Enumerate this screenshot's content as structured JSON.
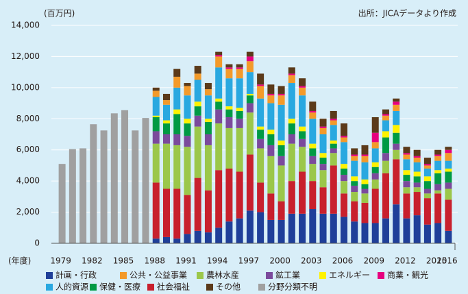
{
  "chart_data": {
    "type": "stacked_bar",
    "unit_label": "(百万円)",
    "source": "出所：JICAデータより作成",
    "x_label": "(年度)",
    "categories": [
      "1979",
      null,
      null,
      "1982",
      null,
      null,
      "1985",
      null,
      null,
      "1988",
      null,
      null,
      "1991",
      null,
      null,
      "1994",
      null,
      null,
      "1997",
      null,
      null,
      "2000",
      null,
      null,
      "2003",
      null,
      null,
      "2006",
      null,
      null,
      "2009",
      null,
      null,
      "2012",
      null,
      null,
      "2015",
      "2016"
    ],
    "ylim": [
      0,
      14000
    ],
    "yticks": [
      0,
      {
        "value": 2000,
        "label": "2,000"
      },
      {
        "value": 4000,
        "label": "4,000"
      },
      {
        "value": 6000,
        "label": "6,000"
      },
      {
        "value": 8000,
        "label": "8,000"
      },
      {
        "value": 10000,
        "label": "10,000"
      },
      {
        "value": 12000,
        "label": "12,000"
      },
      {
        "value": 14000,
        "label": "14,000"
      }
    ],
    "grid": true,
    "series": [
      {
        "name": "計画・行政",
        "color": "#1f3f99",
        "values": [
          null,
          null,
          null,
          null,
          null,
          null,
          null,
          null,
          null,
          300,
          400,
          300,
          600,
          800,
          700,
          1000,
          1400,
          1600,
          2100,
          2000,
          1500,
          1500,
          1900,
          1900,
          2200,
          1900,
          1900,
          1700,
          1400,
          1300,
          1300,
          1600,
          2500,
          1600,
          1800,
          1200,
          1300,
          800
        ]
      },
      {
        "name": "公共・公益事業",
        "color": "#f39a2a",
        "values": [
          null,
          null,
          null,
          null,
          null,
          null,
          null,
          null,
          null,
          400,
          300,
          700,
          600,
          400,
          400,
          700,
          600,
          600,
          700,
          800,
          500,
          600,
          500,
          500,
          400,
          400,
          300,
          300,
          300,
          400,
          400,
          300,
          400,
          300,
          300,
          200,
          300,
          500
        ]
      },
      {
        "name": "農林水産",
        "color": "#9bc74a",
        "values": [
          null,
          null,
          null,
          null,
          null,
          null,
          null,
          null,
          null,
          2500,
          2900,
          2800,
          3100,
          3300,
          2900,
          3000,
          2600,
          2800,
          2700,
          2200,
          2400,
          2300,
          2400,
          1600,
          1100,
          1100,
          800,
          800,
          600,
          600,
          600,
          800,
          600,
          400,
          300,
          300,
          200,
          700
        ]
      },
      {
        "name": "鉱工業",
        "color": "#7b4a9c",
        "values": [
          null,
          null,
          null,
          null,
          null,
          null,
          null,
          null,
          null,
          800,
          600,
          700,
          700,
          700,
          700,
          900,
          700,
          600,
          600,
          600,
          700,
          600,
          600,
          500,
          500,
          400,
          300,
          400,
          400,
          300,
          400,
          500,
          400,
          400,
          300,
          300,
          400,
          400
        ]
      },
      {
        "name": "エネルギー",
        "color": "#fff200",
        "values": [
          null,
          null,
          null,
          null,
          null,
          null,
          null,
          null,
          null,
          100,
          200,
          300,
          300,
          300,
          200,
          200,
          200,
          200,
          100,
          200,
          300,
          300,
          300,
          300,
          300,
          300,
          200,
          300,
          300,
          300,
          300,
          400,
          500,
          300,
          300,
          300,
          200,
          200
        ]
      },
      {
        "name": "商業・観光",
        "color": "#e6007e",
        "values": [
          null,
          null,
          null,
          null,
          null,
          null,
          null,
          null,
          null,
          0,
          0,
          0,
          0,
          0,
          0,
          100,
          100,
          100,
          300,
          100,
          100,
          100,
          100,
          100,
          100,
          100,
          100,
          100,
          100,
          100,
          600,
          100,
          200,
          100,
          100,
          100,
          100,
          200
        ]
      },
      {
        "name": "人的資源",
        "color": "#29a8e0",
        "values": [
          null,
          null,
          null,
          null,
          null,
          null,
          null,
          null,
          null,
          1200,
          1000,
          1400,
          1500,
          1400,
          1500,
          2000,
          1800,
          1900,
          1400,
          1800,
          1700,
          2300,
          2300,
          2000,
          1600,
          1200,
          1000,
          1400,
          1000,
          1100,
          900,
          700,
          900,
          700,
          600,
          500,
          600,
          500
        ]
      },
      {
        "name": "保健・医療",
        "color": "#009a44",
        "values": [
          null,
          null,
          null,
          null,
          null,
          null,
          null,
          null,
          null,
          900,
          700,
          1300,
          800,
          600,
          800,
          500,
          500,
          500,
          500,
          600,
          700,
          700,
          700,
          500,
          500,
          400,
          300,
          400,
          300,
          300,
          400,
          1000,
          700,
          400,
          400,
          500,
          700,
          700
        ]
      },
      {
        "name": "社会福祉",
        "color": "#c8202d",
        "values": [
          null,
          null,
          null,
          null,
          null,
          null,
          null,
          null,
          null,
          3600,
          3100,
          3200,
          2500,
          3400,
          2700,
          3700,
          3400,
          3000,
          3600,
          1900,
          1700,
          1200,
          2100,
          2700,
          1800,
          1700,
          3100,
          1500,
          1300,
          1300,
          2200,
          2900,
          2900,
          1600,
          1500,
          1700,
          1900,
          2000
        ]
      },
      {
        "name": "その他",
        "color": "#5b3a1a",
        "values": [
          null,
          null,
          null,
          null,
          null,
          null,
          null,
          null,
          null,
          200,
          400,
          500,
          200,
          500,
          400,
          200,
          200,
          200,
          300,
          700,
          600,
          500,
          400,
          500,
          600,
          500,
          500,
          800,
          400,
          600,
          1000,
          300,
          200,
          400,
          400,
          400,
          300,
          200
        ]
      },
      {
        "name": "分野分類不明",
        "color": "#a0a0a0",
        "values": [
          5100,
          6050,
          6100,
          7650,
          7250,
          8350,
          8550,
          7250,
          8050,
          null,
          null,
          null,
          null,
          null,
          null,
          null,
          null,
          null,
          null,
          null,
          null,
          null,
          null,
          null,
          null,
          null,
          null,
          null,
          null,
          null,
          null,
          null,
          null,
          null,
          null,
          null,
          null,
          null
        ]
      }
    ]
  }
}
